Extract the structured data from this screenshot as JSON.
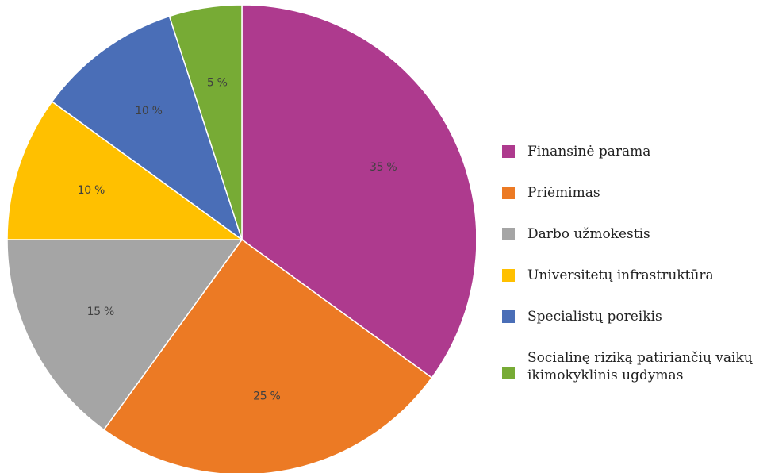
{
  "chart_data": {
    "type": "pie",
    "title": "",
    "start_angle_deg": 0,
    "direction": "clockwise",
    "legend_position": "right",
    "slices": [
      {
        "label": "Finansinė parama",
        "value": 35,
        "display": "35 %",
        "color": "#AE3A8E"
      },
      {
        "label": "Priėmimas",
        "value": 25,
        "display": "25 %",
        "color": "#EC7A24"
      },
      {
        "label": "Darbo užmokestis",
        "value": 15,
        "display": "15 %",
        "color": "#A5A5A5"
      },
      {
        "label": "Universitetų infrastruktūra",
        "value": 10,
        "display": "10 %",
        "color": "#FFC000"
      },
      {
        "label": "Specialistų poreikis",
        "value": 10,
        "display": "10 %",
        "color": "#4A6EB7"
      },
      {
        "label": "Socialinę riziką patiriančių vaikų ikimokyklinis ugdymas",
        "value": 5,
        "display": "5 %",
        "color": "#77AB35"
      }
    ]
  }
}
